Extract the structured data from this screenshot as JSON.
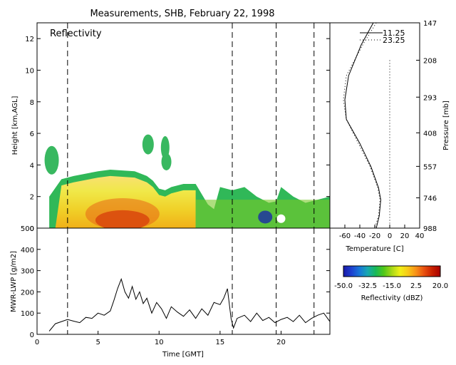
{
  "title": "Measurements, SHB, February 22, 1998",
  "chart_data": [
    {
      "type": "heatmap",
      "panel_label": "Reflectivity",
      "ylabel": "Height [km,AGL]",
      "xlim": [
        0,
        24
      ],
      "ylim": [
        0,
        13
      ],
      "yticks": [
        0,
        2,
        4,
        6,
        8,
        10,
        12
      ],
      "dashed_lines_x": [
        2.5,
        16.0,
        19.6,
        22.7
      ],
      "cloud_top_profile": {
        "x": [
          1.0,
          2.0,
          3.0,
          5.0,
          6.0,
          8.0,
          9.0,
          9.5,
          10.0,
          10.5,
          11.0,
          12.0,
          13.0,
          14.0,
          14.5,
          15.0,
          16.0,
          17.0,
          18.0,
          19.0,
          19.6,
          20.0,
          21.0,
          22.0,
          23.0,
          24.0
        ],
        "top_km": [
          2.0,
          3.1,
          3.3,
          3.6,
          3.7,
          3.6,
          3.3,
          3.0,
          2.5,
          2.4,
          2.6,
          2.8,
          2.8,
          1.5,
          1.2,
          2.6,
          2.4,
          2.6,
          2.0,
          1.6,
          1.7,
          2.6,
          2.0,
          1.6,
          1.8,
          2.0
        ]
      }
    },
    {
      "type": "line",
      "xlabel": "Temperature [C]",
      "ylabel": "Pressure [mb]",
      "xlim": [
        -80,
        40
      ],
      "xticks": [
        -60,
        -40,
        -20,
        0,
        20,
        40
      ],
      "yticks": [
        147,
        208,
        293,
        408,
        557,
        746,
        988
      ],
      "series": [
        {
          "name": "11.25",
          "style": "solid",
          "x": [
            -22,
            -38,
            -55,
            -60,
            -58,
            -40,
            -25,
            -15,
            -12,
            -14,
            -18
          ],
          "y": [
            147,
            180,
            240,
            300,
            360,
            450,
            560,
            680,
            760,
            880,
            988
          ]
        },
        {
          "name": "23.25",
          "style": "dotted",
          "x": [
            -18,
            -36,
            -58,
            -62,
            -58,
            -42,
            -26,
            -16,
            -13,
            -15,
            -20
          ],
          "y": [
            147,
            180,
            240,
            300,
            360,
            450,
            560,
            680,
            760,
            880,
            988
          ]
        },
        {
          "name": "",
          "style": "dotted",
          "x": [
            0,
            0
          ],
          "y": [
            208,
            988
          ]
        }
      ]
    },
    {
      "type": "line",
      "xlabel": "Time [GMT]",
      "ylabel": "MWR-LWP [g/m2]",
      "xlim": [
        0,
        24
      ],
      "ylim": [
        0,
        500
      ],
      "xticks": [
        0,
        5,
        10,
        15,
        20
      ],
      "yticks": [
        0,
        100,
        200,
        300,
        400,
        500
      ],
      "dashed_lines_x": [
        2.5,
        16.0,
        19.6,
        22.7
      ],
      "series": [
        {
          "name": "LWP",
          "x": [
            1.0,
            1.5,
            2.0,
            2.5,
            3.0,
            3.5,
            4.0,
            4.5,
            5.0,
            5.5,
            6.0,
            6.3,
            6.6,
            6.9,
            7.2,
            7.5,
            7.8,
            8.1,
            8.4,
            8.7,
            9.0,
            9.4,
            9.8,
            10.2,
            10.6,
            11.0,
            11.5,
            12.0,
            12.5,
            13.0,
            13.5,
            14.0,
            14.5,
            15.0,
            15.3,
            15.6,
            15.9,
            16.1,
            16.4,
            17.0,
            17.5,
            18.0,
            18.5,
            19.0,
            19.5,
            20.0,
            20.5,
            21.0,
            21.5,
            22.0,
            22.5,
            23.0,
            23.5,
            24.0
          ],
          "y": [
            15,
            50,
            60,
            70,
            62,
            55,
            80,
            75,
            100,
            90,
            110,
            160,
            215,
            260,
            200,
            170,
            225,
            165,
            200,
            145,
            170,
            100,
            150,
            120,
            75,
            130,
            105,
            85,
            115,
            75,
            120,
            90,
            150,
            140,
            170,
            215,
            75,
            30,
            75,
            90,
            60,
            100,
            65,
            80,
            55,
            70,
            80,
            60,
            90,
            55,
            75,
            90,
            100,
            60
          ]
        }
      ]
    },
    {
      "type": "colorbar",
      "label": "Reflectivity (dBZ)",
      "tick_labels": [
        "-50.0",
        "-32.5",
        "-15.0",
        "2.5",
        "20.0"
      ],
      "range": [
        -50,
        20
      ],
      "colors": [
        "#1a1aa8",
        "#1e40d0",
        "#1878d8",
        "#18a8b0",
        "#18b858",
        "#50c818",
        "#a8d818",
        "#f0f018",
        "#f8c818",
        "#f89018",
        "#e85010",
        "#c82000",
        "#a80000"
      ]
    }
  ]
}
